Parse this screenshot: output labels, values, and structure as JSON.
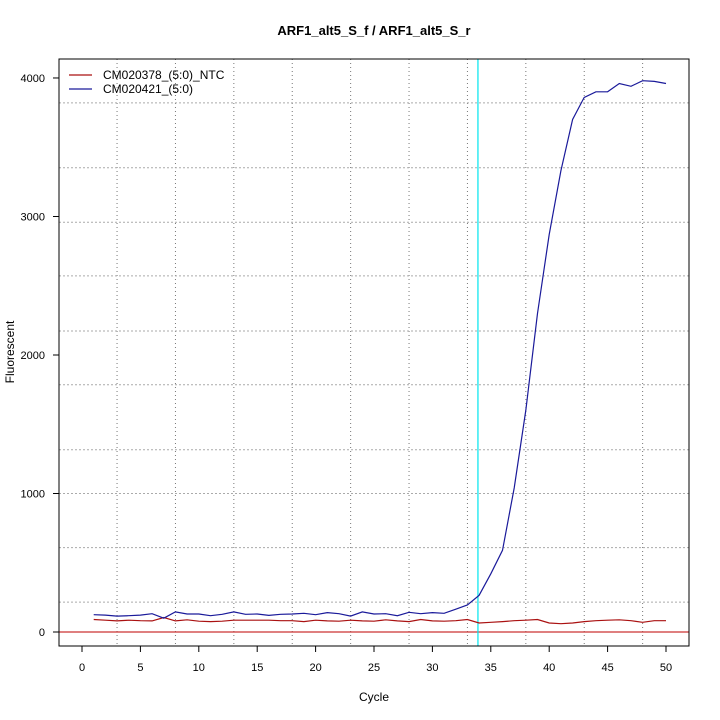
{
  "chart_data": {
    "type": "line",
    "title": "ARF1_alt5_S_f / ARF1_alt5_S_r",
    "xlabel": "Cycle",
    "ylabel": "Fluorescent",
    "xlim": [
      -1.97,
      51.97
    ],
    "ylim": [
      -101,
      4137
    ],
    "xticks": [
      0,
      5,
      10,
      15,
      20,
      25,
      30,
      35,
      40,
      45,
      50
    ],
    "yticks": [
      0,
      1000,
      2000,
      3000,
      4000
    ],
    "grid": true,
    "grid_x": [
      3,
      8,
      13,
      18,
      23,
      28,
      33,
      38,
      43,
      48
    ],
    "grid_y": [
      216,
      609,
      1000,
      1316,
      1785,
      2173,
      2571,
      2958,
      3352,
      3820
    ],
    "legend_position": "top-left",
    "threshold_line": {
      "value": 0,
      "color": "#cc3333"
    },
    "ct_line": {
      "cycle": 33.9,
      "color": "#00e5ee"
    },
    "x": [
      1,
      2,
      3,
      4,
      5,
      6,
      7,
      8,
      9,
      10,
      11,
      12,
      13,
      14,
      15,
      16,
      17,
      18,
      19,
      20,
      21,
      22,
      23,
      24,
      25,
      26,
      27,
      28,
      29,
      30,
      31,
      32,
      33,
      34,
      35,
      36,
      37,
      38,
      39,
      40,
      41,
      42,
      43,
      44,
      45,
      46,
      47,
      48,
      49,
      50
    ],
    "series": [
      {
        "name": "CM020378_(5:0)_NTC",
        "color": "#aa1111",
        "values": [
          90,
          85,
          80,
          85,
          82,
          80,
          105,
          80,
          88,
          78,
          75,
          78,
          85,
          85,
          85,
          85,
          82,
          82,
          75,
          85,
          80,
          78,
          85,
          80,
          78,
          88,
          80,
          75,
          90,
          80,
          78,
          82,
          90,
          65,
          70,
          75,
          82,
          85,
          90,
          65,
          60,
          65,
          75,
          82,
          85,
          88,
          82,
          70,
          82,
          82
        ]
      },
      {
        "name": "CM020421_(5:0)",
        "color": "#1a1a9a",
        "values": [
          125,
          122,
          115,
          118,
          122,
          132,
          100,
          145,
          130,
          130,
          118,
          128,
          145,
          128,
          130,
          120,
          128,
          130,
          135,
          125,
          140,
          132,
          115,
          145,
          130,
          132,
          118,
          142,
          132,
          140,
          135,
          165,
          195,
          265,
          420,
          590,
          1040,
          1600,
          2300,
          2870,
          3330,
          3700,
          3860,
          3900,
          3900,
          3960,
          3940,
          3980,
          3975,
          3960
        ]
      }
    ]
  }
}
